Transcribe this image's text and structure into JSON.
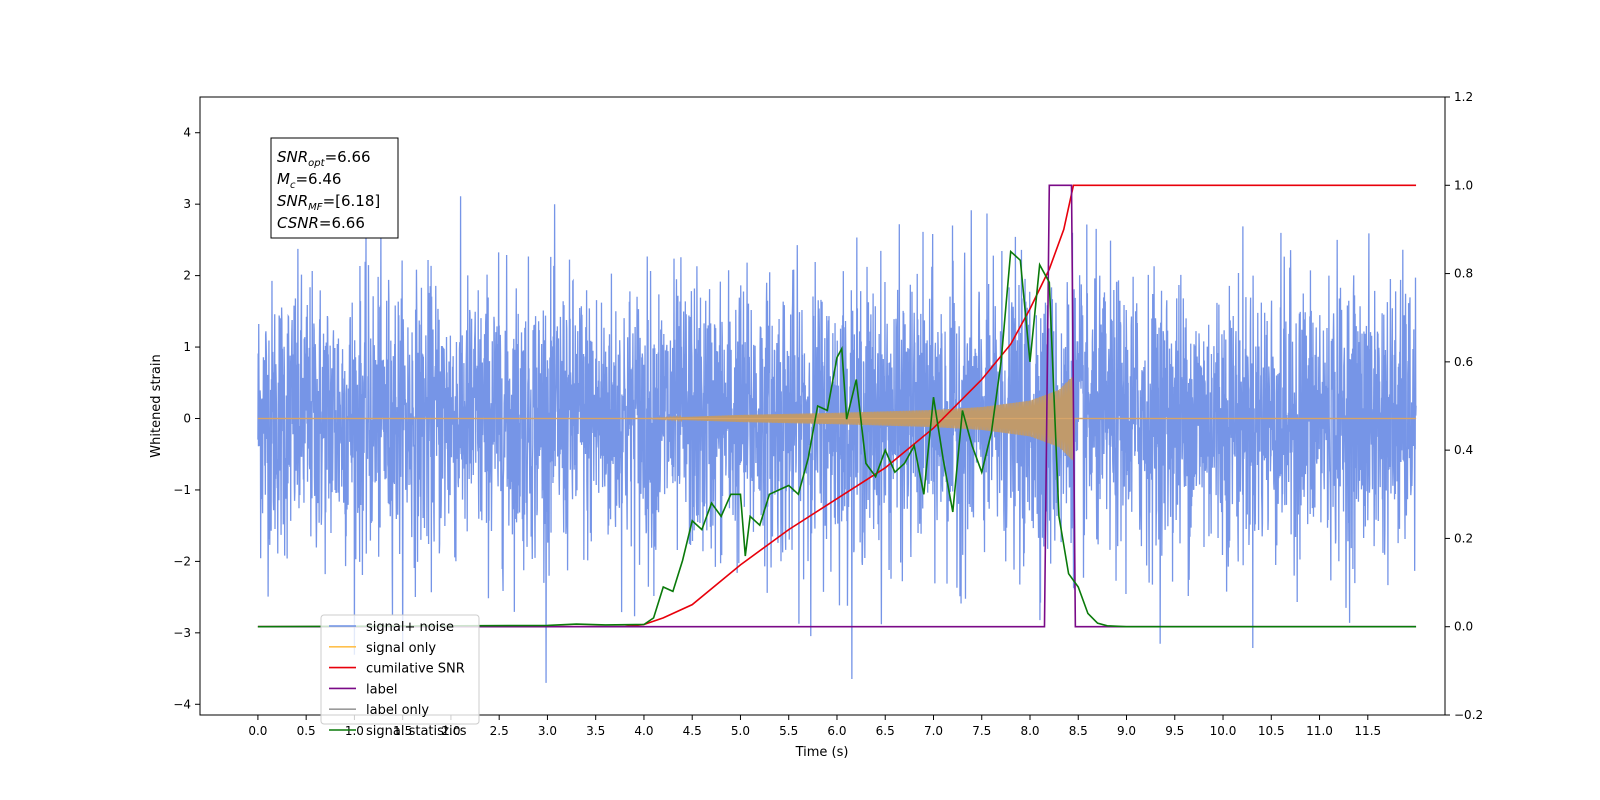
{
  "chart_data": {
    "type": "line",
    "title": "",
    "xlabel": "Time (s)",
    "ylabel": "Whitened strain",
    "ylabel_right": "",
    "xlim": [
      -0.6,
      12.3
    ],
    "ylim": [
      -4.15,
      4.5
    ],
    "ylim_right": [
      -0.2,
      1.2
    ],
    "x_ticks": [
      0.0,
      0.5,
      1.0,
      1.5,
      2.0,
      2.5,
      3.0,
      3.5,
      4.0,
      4.5,
      5.0,
      5.5,
      6.0,
      6.5,
      7.0,
      7.5,
      8.0,
      8.5,
      9.0,
      9.5,
      10.0,
      10.5,
      11.0,
      11.5
    ],
    "x_tick_labels": [
      "0.0",
      "0.5",
      "1.0",
      "1.5",
      "2.0",
      "2.5",
      "3.0",
      "3.5",
      "4.0",
      "4.5",
      "5.0",
      "5.5",
      "6.0",
      "6.5",
      "7.0",
      "7.5",
      "8.0",
      "8.5",
      "9.0",
      "9.5",
      "10.0",
      "10.5",
      "11.0",
      "11.5"
    ],
    "y_ticks": [
      -4,
      -3,
      -2,
      -1,
      0,
      1,
      2,
      3,
      4
    ],
    "y_tick_labels": [
      "−4",
      "−3",
      "−2",
      "−1",
      "0",
      "1",
      "2",
      "3",
      "4"
    ],
    "y_right_ticks": [
      -0.2,
      0.0,
      0.2,
      0.4,
      0.6,
      0.8,
      1.0,
      1.2
    ],
    "y_right_tick_labels": [
      "−0.2",
      "0.0",
      "0.2",
      "0.4",
      "0.6",
      "0.8",
      "1.0",
      "1.2"
    ],
    "grid": false,
    "legend_position": "bottom-left",
    "annotation": {
      "lines": [
        {
          "var": "SNR",
          "sub": "opt",
          "val": "=6.66"
        },
        {
          "var": "M",
          "sub": "c",
          "val": "=6.46"
        },
        {
          "var": "SNR",
          "sub": "MF",
          "val": "=[6.18]"
        },
        {
          "var": "CSNR",
          "sub": "",
          "val": "=6.66"
        }
      ]
    },
    "series": [
      {
        "name": "signal+ noise",
        "color": "#6f8fe6",
        "axis": "left",
        "style": "noise",
        "x_range": [
          0.0,
          12.0
        ],
        "std": 1.0,
        "envelope": {
          "x": [
            0.0,
            4.0,
            5.0,
            6.0,
            7.0,
            7.5,
            8.0,
            8.3,
            8.45,
            8.5,
            12.0
          ],
          "amp": [
            0.0,
            0.0,
            0.05,
            0.08,
            0.12,
            0.16,
            0.25,
            0.4,
            0.6,
            0.0,
            0.0
          ]
        }
      },
      {
        "name": "signal only",
        "color": "#ffc04d",
        "axis": "left",
        "style": "chirp",
        "x_range": [
          0.0,
          12.0
        ],
        "envelope": {
          "x": [
            0.0,
            4.0,
            5.0,
            6.0,
            7.0,
            7.5,
            8.0,
            8.3,
            8.45,
            8.46,
            12.0
          ],
          "amp": [
            0.0,
            0.0,
            0.05,
            0.08,
            0.12,
            0.16,
            0.25,
            0.4,
            0.6,
            0.0,
            0.0
          ]
        }
      },
      {
        "name": "cumilative SNR",
        "color": "#e8000b",
        "axis": "right",
        "x": [
          0.0,
          3.8,
          4.0,
          4.2,
          4.5,
          5.0,
          5.5,
          6.0,
          6.5,
          7.0,
          7.5,
          7.8,
          8.0,
          8.2,
          8.35,
          8.45,
          12.0
        ],
        "y": [
          0.0,
          0.0,
          0.005,
          0.02,
          0.05,
          0.14,
          0.22,
          0.29,
          0.36,
          0.45,
          0.56,
          0.64,
          0.72,
          0.81,
          0.9,
          1.0,
          1.0
        ]
      },
      {
        "name": "label",
        "color": "#7a0a87",
        "axis": "right",
        "x": [
          0.0,
          8.15,
          8.2,
          8.4,
          8.43,
          8.47,
          12.0
        ],
        "y": [
          0.0,
          0.0,
          1.0,
          1.0,
          1.0,
          0.0,
          0.0
        ]
      },
      {
        "name": "label only",
        "color": "#9a9a9a",
        "axis": "right",
        "x": [
          0.0,
          8.15,
          8.2,
          8.4,
          8.43,
          8.47,
          12.0
        ],
        "y": [
          0.0,
          0.0,
          1.0,
          1.0,
          1.0,
          0.0,
          0.0
        ],
        "hidden": true
      },
      {
        "name": "signal statistics",
        "color": "#0a7a0a",
        "axis": "right",
        "x": [
          0.0,
          3.0,
          3.3,
          3.6,
          4.0,
          4.1,
          4.2,
          4.3,
          4.4,
          4.5,
          4.6,
          4.7,
          4.8,
          4.9,
          5.0,
          5.05,
          5.1,
          5.2,
          5.3,
          5.4,
          5.5,
          5.6,
          5.7,
          5.8,
          5.9,
          6.0,
          6.05,
          6.1,
          6.2,
          6.3,
          6.4,
          6.5,
          6.6,
          6.7,
          6.8,
          6.9,
          7.0,
          7.1,
          7.2,
          7.3,
          7.4,
          7.5,
          7.6,
          7.7,
          7.8,
          7.9,
          8.0,
          8.1,
          8.2,
          8.3,
          8.4,
          8.5,
          8.6,
          8.7,
          8.8,
          9.0,
          12.0
        ],
        "y": [
          0.0,
          0.003,
          0.006,
          0.004,
          0.005,
          0.02,
          0.09,
          0.08,
          0.15,
          0.24,
          0.22,
          0.28,
          0.25,
          0.3,
          0.3,
          0.16,
          0.25,
          0.23,
          0.3,
          0.31,
          0.32,
          0.3,
          0.38,
          0.5,
          0.49,
          0.61,
          0.63,
          0.47,
          0.56,
          0.37,
          0.34,
          0.4,
          0.35,
          0.37,
          0.41,
          0.3,
          0.52,
          0.38,
          0.26,
          0.49,
          0.41,
          0.35,
          0.44,
          0.6,
          0.85,
          0.83,
          0.6,
          0.82,
          0.78,
          0.25,
          0.12,
          0.09,
          0.03,
          0.008,
          0.002,
          0.0,
          0.0
        ]
      }
    ]
  }
}
